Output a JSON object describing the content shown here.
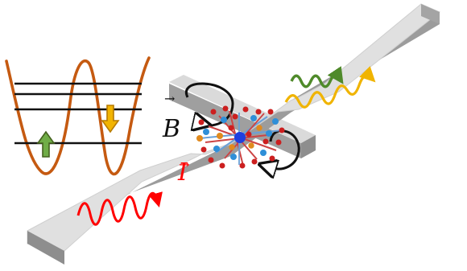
{
  "labels": {
    "magnetic_field": "B",
    "current": "I",
    "vector_mark": "→"
  },
  "colors": {
    "strip_top": "#e2e2e2",
    "strip_side": "#9a9a9a",
    "gate_top": "#d9d9d9",
    "potential_curve": "#c55a11",
    "energy_levels": "#111111",
    "spin_up": "#70ad47",
    "spin_down": "#f0b400",
    "input_wave": "#ff0000",
    "output_wave_green": "#4f8a2a",
    "output_wave_yellow": "#f0b400",
    "current_label": "#ff0000",
    "field_label": "#111111",
    "molecule_red": "#cc1f1f",
    "molecule_blue": "#2f8fd8",
    "molecule_orange": "#e08a1e",
    "molecule_core": "#1f3fe0"
  },
  "icons": {
    "left_loop": "rotation-arrow-icon",
    "right_loop": "rotation-arrow-icon",
    "spin_up": "up-arrow-icon",
    "spin_down": "down-arrow-icon"
  }
}
